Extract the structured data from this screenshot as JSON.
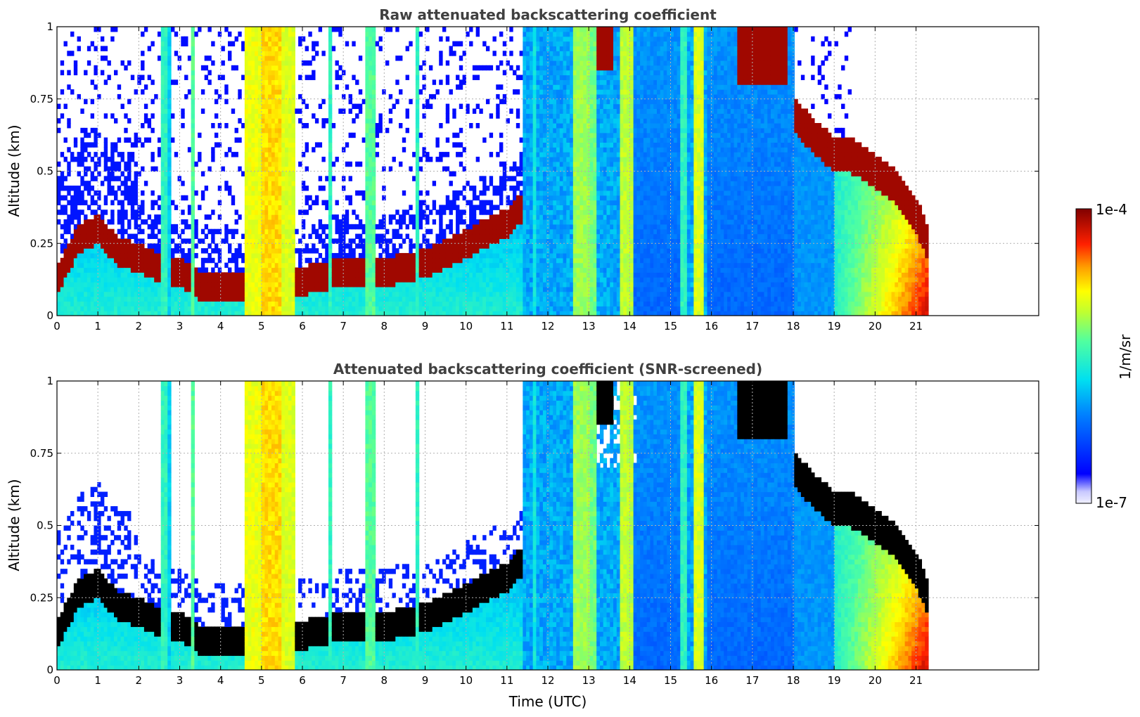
{
  "chart_data": [
    {
      "type": "heatmap",
      "title": "Raw attenuated backscattering coefficient",
      "xlabel": "",
      "ylabel": "Altitude (km)",
      "xlim": [
        0,
        24
      ],
      "ylim": [
        0,
        1
      ],
      "xticks": [
        0,
        1,
        2,
        3,
        4,
        5,
        6,
        7,
        8,
        9,
        10,
        11,
        12,
        13,
        14,
        15,
        16,
        17,
        18,
        19,
        20,
        21
      ],
      "xtick_labels": [
        "0",
        "1",
        "2",
        "3",
        "4",
        "5",
        "6",
        "7",
        "8",
        "9",
        "10",
        "11",
        "12",
        "13",
        "14",
        "15",
        "16",
        "17",
        "18",
        "19",
        "20",
        "21"
      ],
      "yticks": [
        0,
        0.25,
        0.5,
        0.75,
        1
      ],
      "ytick_labels": [
        "0",
        "0.25",
        "0.5",
        "0.75",
        "1"
      ],
      "data_end_time": 21.3,
      "boundary_layer_top_km": [
        [
          0,
          0.12
        ],
        [
          0.5,
          0.26
        ],
        [
          1,
          0.3
        ],
        [
          1.5,
          0.22
        ],
        [
          2,
          0.2
        ],
        [
          2.5,
          0.17
        ],
        [
          3,
          0.15
        ],
        [
          3.5,
          0.1
        ],
        [
          4,
          0.1
        ],
        [
          4.5,
          0.1
        ],
        [
          5,
          0.09
        ],
        [
          5.5,
          0.1
        ],
        [
          6,
          0.12
        ],
        [
          7,
          0.15
        ],
        [
          8,
          0.15
        ],
        [
          9,
          0.18
        ],
        [
          10,
          0.25
        ],
        [
          11,
          0.32
        ],
        [
          11.4,
          0.38
        ]
      ],
      "elevated_layer_km": [
        [
          18,
          0.7
        ],
        [
          18.5,
          0.62
        ],
        [
          19,
          0.56
        ],
        [
          19.5,
          0.55
        ],
        [
          20,
          0.5
        ],
        [
          20.5,
          0.45
        ],
        [
          21,
          0.35
        ],
        [
          21.3,
          0.25
        ]
      ],
      "grid": true
    },
    {
      "type": "heatmap",
      "title": "Attenuated backscattering coefficient (SNR-screened)",
      "xlabel": "Time (UTC)",
      "ylabel": "Altitude (km)",
      "xlim": [
        0,
        24
      ],
      "ylim": [
        0,
        1
      ],
      "xticks": [
        0,
        1,
        2,
        3,
        4,
        5,
        6,
        7,
        8,
        9,
        10,
        11,
        12,
        13,
        14,
        15,
        16,
        17,
        18,
        19,
        20,
        21
      ],
      "xtick_labels": [
        "0",
        "1",
        "2",
        "3",
        "4",
        "5",
        "6",
        "7",
        "8",
        "9",
        "10",
        "11",
        "12",
        "13",
        "14",
        "15",
        "16",
        "17",
        "18",
        "19",
        "20",
        "21"
      ],
      "yticks": [
        0,
        0.25,
        0.5,
        0.75,
        1
      ],
      "ytick_labels": [
        "0",
        "0.25",
        "0.5",
        "0.75",
        "1"
      ],
      "data_end_time": 21.3,
      "grid": true
    }
  ],
  "colorbar": {
    "label": "1/m/sr",
    "max_label": "1e-4",
    "min_label": "1e-7",
    "colormap": "jet",
    "scale": "log"
  },
  "colors": {
    "title": "#404040",
    "grid": "#b0b0b0",
    "saturated": "#7f0000",
    "screened_saturated": "#000000"
  }
}
